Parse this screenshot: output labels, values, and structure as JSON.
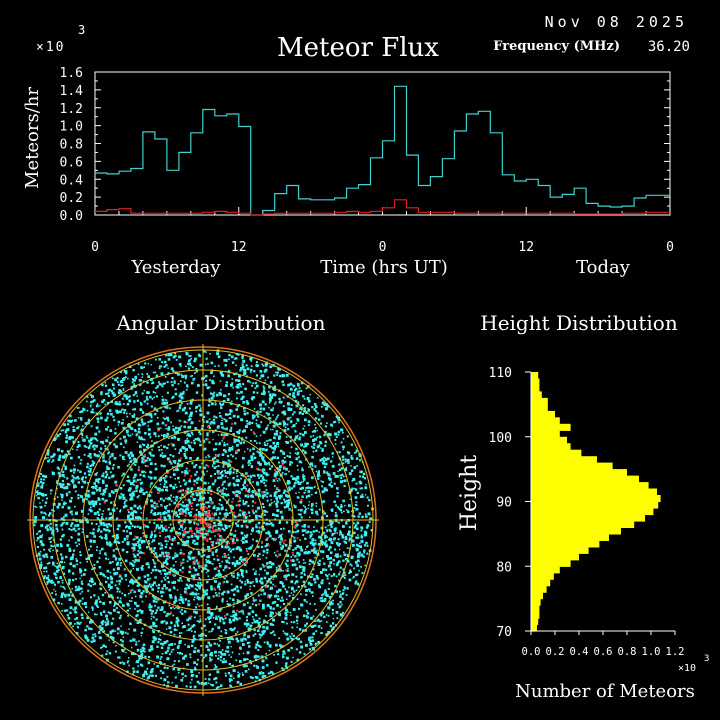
{
  "header": {
    "date": "Nov 08 2025",
    "frequency_label": "Frequency (MHz)",
    "frequency_value": "36.20"
  },
  "flux": {
    "title": "Meteor Flux",
    "exponent_prefix": "×10",
    "exponent_power": "3",
    "ylabel": "Meteors/hr",
    "xlabel": "Time (hrs UT)",
    "day_left": "Yesterday",
    "day_right": "Today"
  },
  "angular": {
    "title": "Angular Distribution"
  },
  "height_dist": {
    "title": "Height Distribution",
    "ylabel": "Height",
    "xlabel": "Number of Meteors",
    "exponent_prefix": "×10",
    "exponent_power": "3"
  },
  "colors": {
    "background": "#000000",
    "axes": "#ffffff",
    "series_cyan": "#40d0d0",
    "series_red": "#e02020",
    "dots_cyan": "#40f0f0",
    "dots_red": "#ff3030",
    "rings": "#e8c020",
    "histogram": "#ffff00"
  },
  "chart_data": [
    {
      "type": "line",
      "title": "Meteor Flux",
      "xlabel": "Time (hrs UT)",
      "ylabel": "Meteors/hr",
      "x_ticks": [
        "0",
        "12",
        "0",
        "12",
        "0"
      ],
      "y_ticks": [
        "0.0",
        "0.2",
        "0.4",
        "0.6",
        "0.8",
        "1.0",
        "1.2",
        "1.4",
        "1.6"
      ],
      "ylim": [
        0,
        1.6
      ],
      "y_multiplier": 1000,
      "x_unit": "hours since yesterday 00 UT",
      "xlim": [
        0,
        48
      ],
      "series": [
        {
          "x": [
            0,
            1,
            2,
            3,
            4,
            5,
            6,
            7,
            8,
            9,
            10,
            11,
            12,
            13,
            14,
            15,
            16,
            17,
            18,
            19,
            20,
            21,
            22,
            23,
            24,
            25,
            26,
            27,
            28,
            29,
            30,
            31,
            32,
            33,
            34,
            35,
            36,
            37,
            38,
            39,
            40,
            41,
            42,
            43,
            44,
            45,
            46,
            47
          ],
          "values": [
            0.47,
            0.46,
            0.49,
            0.52,
            0.93,
            0.85,
            0.5,
            0.7,
            0.92,
            1.18,
            1.11,
            1.13,
            0.99,
            0.0,
            0.05,
            0.24,
            0.33,
            0.18,
            0.17,
            0.17,
            0.19,
            0.3,
            0.34,
            0.64,
            0.83,
            1.44,
            0.67,
            0.33,
            0.43,
            0.63,
            0.94,
            1.13,
            1.16,
            0.92,
            0.45,
            0.38,
            0.4,
            0.33,
            0.2,
            0.23,
            0.3,
            0.13,
            0.1,
            0.09,
            0.1,
            0.19,
            0.22,
            0.22
          ]
        },
        {
          "x": [
            0,
            1,
            2,
            3,
            4,
            5,
            6,
            7,
            8,
            9,
            10,
            11,
            12,
            13,
            14,
            15,
            16,
            17,
            18,
            19,
            20,
            21,
            22,
            23,
            24,
            25,
            26,
            27,
            28,
            29,
            30,
            31,
            32,
            33,
            34,
            35,
            36,
            37,
            38,
            39,
            40,
            41,
            42,
            43,
            44,
            45,
            46,
            47
          ],
          "values": [
            0.04,
            0.06,
            0.07,
            0.02,
            0.02,
            0.02,
            0.02,
            0.02,
            0.02,
            0.03,
            0.04,
            0.03,
            0.02,
            0.0,
            0.01,
            0.02,
            0.02,
            0.02,
            0.02,
            0.02,
            0.03,
            0.04,
            0.03,
            0.04,
            0.08,
            0.17,
            0.08,
            0.03,
            0.03,
            0.03,
            0.02,
            0.02,
            0.02,
            0.02,
            0.02,
            0.02,
            0.02,
            0.02,
            0.02,
            0.02,
            0.01,
            0.01,
            0.01,
            0.01,
            0.02,
            0.02,
            0.03,
            0.03
          ]
        }
      ]
    },
    {
      "type": "bar",
      "orientation": "horizontal",
      "title": "Height Distribution",
      "xlabel": "Number of Meteors",
      "ylabel": "Height",
      "x_multiplier": 1000,
      "xlim": [
        0,
        1.2
      ],
      "ylim": [
        70,
        110
      ],
      "x_ticks": [
        "0.0",
        "0.2",
        "0.4",
        "0.6",
        "0.8",
        "1.0",
        "1.2"
      ],
      "y_ticks": [
        "70",
        "80",
        "90",
        "100",
        "110"
      ],
      "heights": [
        70,
        71,
        72,
        73,
        74,
        75,
        76,
        77,
        78,
        79,
        80,
        81,
        82,
        83,
        84,
        85,
        86,
        87,
        88,
        89,
        90,
        91,
        92,
        93,
        94,
        95,
        96,
        97,
        98,
        99,
        100,
        101,
        102,
        103,
        104,
        105,
        106,
        107,
        108,
        109
      ],
      "values": [
        0.05,
        0.06,
        0.07,
        0.07,
        0.08,
        0.1,
        0.13,
        0.16,
        0.19,
        0.24,
        0.33,
        0.4,
        0.48,
        0.57,
        0.65,
        0.75,
        0.86,
        0.95,
        1.02,
        1.06,
        1.08,
        1.05,
        0.98,
        0.9,
        0.8,
        0.68,
        0.55,
        0.42,
        0.33,
        0.3,
        0.24,
        0.33,
        0.24,
        0.2,
        0.14,
        0.14,
        0.09,
        0.07,
        0.07,
        0.06
      ]
    }
  ]
}
